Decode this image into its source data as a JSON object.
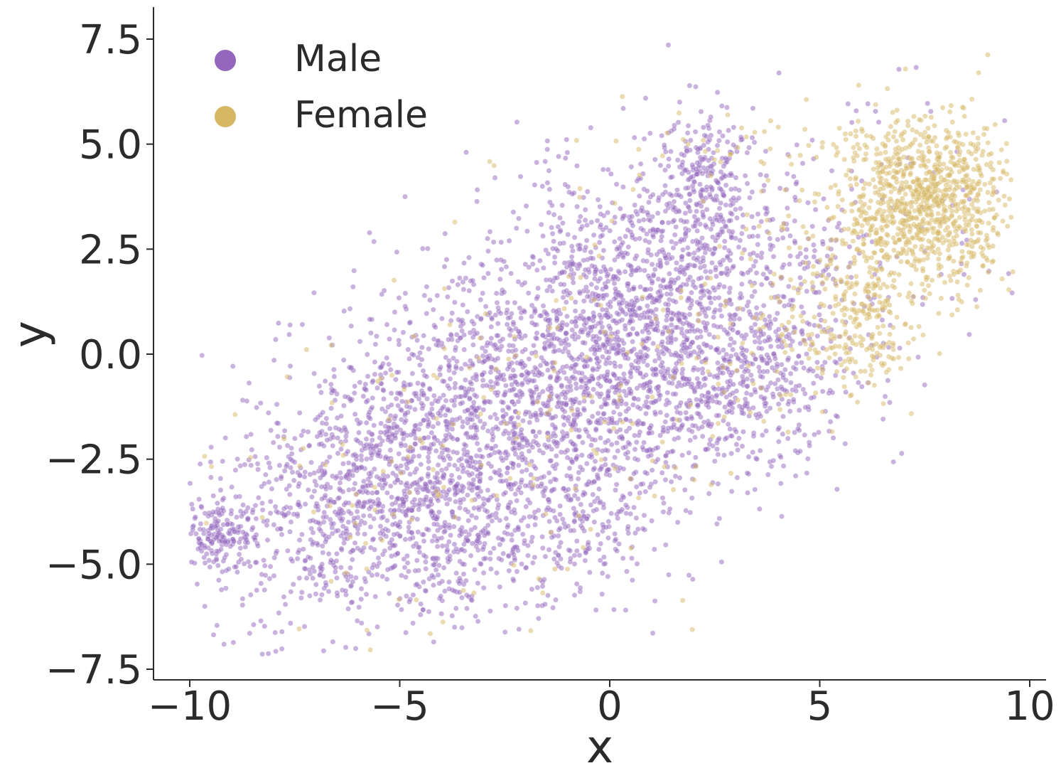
{
  "chart_data": {
    "type": "scatter",
    "title": "",
    "xlabel": "x",
    "ylabel": "y",
    "xlim": [
      -10.8,
      10.8
    ],
    "ylim": [
      -7.9,
      8.3
    ],
    "xticks": [
      -10,
      -5,
      0,
      5,
      10
    ],
    "xtick_labels": [
      "−10",
      "−5",
      "0",
      "5",
      "10"
    ],
    "yticks": [
      -7.5,
      -5.0,
      -2.5,
      0.0,
      2.5,
      5.0,
      7.5
    ],
    "ytick_labels": [
      "−7.5",
      "−5.0",
      "−2.5",
      "0.0",
      "2.5",
      "5.0",
      "7.5"
    ],
    "grid": false,
    "legend_position": "top-left",
    "series": [
      {
        "name": "Male",
        "color": "#9467bd",
        "approx_count": 4800,
        "clusters": [
          {
            "cx": -1.0,
            "cy": -0.8,
            "sx": 3.6,
            "sy": 2.6,
            "rho": 0.55,
            "n": 2900
          },
          {
            "cx": -5.5,
            "cy": -3.0,
            "sx": 1.6,
            "sy": 1.4,
            "rho": 0.3,
            "n": 700
          },
          {
            "cx": 1.0,
            "cy": 1.2,
            "sx": 1.6,
            "sy": 1.6,
            "rho": 0.2,
            "n": 600
          },
          {
            "cx": 2.2,
            "cy": 4.2,
            "sx": 0.45,
            "sy": 0.7,
            "rho": 0.0,
            "n": 180
          },
          {
            "cx": -9.2,
            "cy": -4.3,
            "sx": 0.45,
            "sy": 0.45,
            "rho": 0.2,
            "n": 160
          },
          {
            "cx": 3.8,
            "cy": -0.8,
            "sx": 1.0,
            "sy": 1.0,
            "rho": 0.3,
            "n": 200
          },
          {
            "cx": -2.0,
            "cy": -4.5,
            "sx": 1.5,
            "sy": 0.8,
            "rho": 0.0,
            "n": 200
          }
        ]
      },
      {
        "name": "Female",
        "color": "#d6b864",
        "approx_count": 1550,
        "clusters": [
          {
            "cx": 7.5,
            "cy": 3.6,
            "sx": 1.0,
            "sy": 1.0,
            "rho": 0.0,
            "n": 950
          },
          {
            "cx": 6.2,
            "cy": 0.8,
            "sx": 0.55,
            "sy": 0.8,
            "rho": 0.0,
            "n": 160
          },
          {
            "cx": 5.0,
            "cy": 1.5,
            "sx": 1.3,
            "sy": 1.5,
            "rho": 0.4,
            "n": 200
          },
          {
            "cx": -2.0,
            "cy": -2.0,
            "sx": 4.0,
            "sy": 2.6,
            "rho": 0.5,
            "n": 200
          },
          {
            "cx": 2.5,
            "cy": 4.8,
            "sx": 1.4,
            "sy": 0.6,
            "rho": 0.0,
            "n": 40
          }
        ]
      }
    ]
  }
}
